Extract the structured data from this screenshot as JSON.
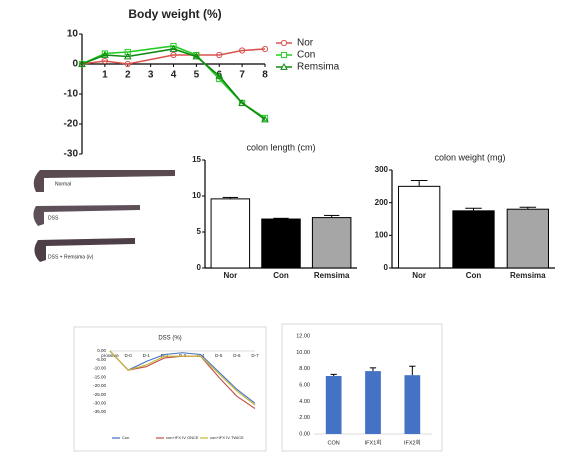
{
  "chart_data": [
    {
      "type": "line",
      "title": "Body weight (%)",
      "x": [
        0,
        1,
        2,
        4,
        5,
        6,
        7,
        8
      ],
      "xlim": [
        0,
        8
      ],
      "xticks": [
        1,
        2,
        3,
        4,
        5,
        6,
        7,
        8
      ],
      "ylim": [
        -30,
        10
      ],
      "yticks": [
        -30,
        -20,
        -10,
        0,
        10
      ],
      "legend": "right",
      "series": [
        {
          "name": "Nor",
          "color": "#d9534f",
          "marker": "circle",
          "values": [
            0,
            1,
            0,
            3,
            3,
            3,
            4.5,
            5
          ]
        },
        {
          "name": "Con",
          "color": "#22cc22",
          "marker": "square",
          "values": [
            0,
            3.5,
            4,
            6,
            3,
            -5,
            -13,
            -18
          ]
        },
        {
          "name": "Remsima",
          "color": "#118811",
          "marker": "triangle",
          "values": [
            0,
            3,
            2.5,
            5,
            2.5,
            -4,
            -13,
            -18.5
          ]
        }
      ]
    },
    {
      "type": "bar",
      "title": "colon length (cm)",
      "categories": [
        "Nor",
        "Con",
        "Remsima"
      ],
      "values": [
        9.6,
        6.8,
        7.0
      ],
      "errors": [
        0.2,
        0.1,
        0.3
      ],
      "colors": [
        "#ffffff",
        "#000000",
        "#a6a6a6"
      ],
      "edgecolor": "#000000",
      "ylim": [
        0,
        15
      ],
      "yticks": [
        0,
        5,
        10,
        15
      ]
    },
    {
      "type": "bar",
      "title": "colon weight (mg)",
      "categories": [
        "Nor",
        "Con",
        "Remsima"
      ],
      "values": [
        250,
        175,
        180
      ],
      "errors": [
        18,
        8,
        6
      ],
      "colors": [
        "#ffffff",
        "#000000",
        "#a6a6a6"
      ],
      "edgecolor": "#000000",
      "ylim": [
        0,
        300
      ],
      "yticks": [
        0,
        100,
        200,
        300
      ]
    },
    {
      "type": "line",
      "title": "DSS (%)",
      "categories": [
        "prossure",
        "D-0",
        "D-1",
        "D-2",
        "D-3",
        "D-4",
        "D-5",
        "D-6",
        "D-7"
      ],
      "ylim": [
        -35,
        0
      ],
      "legend": "bottom",
      "yticks": [
        {
          "value": 0,
          "label": "0.00"
        },
        {
          "value": -5,
          "label": "-5.00"
        },
        {
          "value": -10,
          "label": "-10.00"
        },
        {
          "value": -15,
          "label": "-15.00"
        },
        {
          "value": -20,
          "label": "-20.00"
        },
        {
          "value": -25,
          "label": "-25.00"
        },
        {
          "value": -30,
          "label": "-30.00"
        },
        {
          "value": -35,
          "label": "-35.00"
        }
      ],
      "series": [
        {
          "name": "Con",
          "color": "#4472c4",
          "values": [
            0,
            -11,
            -6,
            -2,
            -1,
            -2,
            -12,
            -22,
            -30
          ]
        },
        {
          "name": "con+IFX IV ONCE",
          "color": "#c0504d",
          "values": [
            0,
            -11,
            -9,
            -4,
            -3,
            -3,
            -15,
            -26,
            -33
          ]
        },
        {
          "name": "con+IFX IV TWICE",
          "color": "#c8b432",
          "values": [
            0,
            -11,
            -8,
            -3,
            -3,
            -3,
            -13,
            -23,
            -31
          ]
        }
      ]
    },
    {
      "type": "bar",
      "categories": [
        "CON",
        "IFX1회",
        "IFX2회"
      ],
      "values": [
        7.1,
        7.7,
        7.2
      ],
      "errors": [
        0.2,
        0.4,
        1.1
      ],
      "color": "#4472c4",
      "ylim": [
        0,
        12
      ],
      "yticks": [
        {
          "value": 0,
          "label": "0.00"
        },
        {
          "value": 2,
          "label": "2.00"
        },
        {
          "value": 4,
          "label": "4.00"
        },
        {
          "value": 6,
          "label": "6.00"
        },
        {
          "value": 8,
          "label": "8.00"
        },
        {
          "value": 10,
          "label": "10.00"
        },
        {
          "value": 12,
          "label": "12.00"
        }
      ]
    }
  ],
  "photo_labels": [
    "Normal",
    "DSS",
    "DSS + Remsima (iv)"
  ]
}
